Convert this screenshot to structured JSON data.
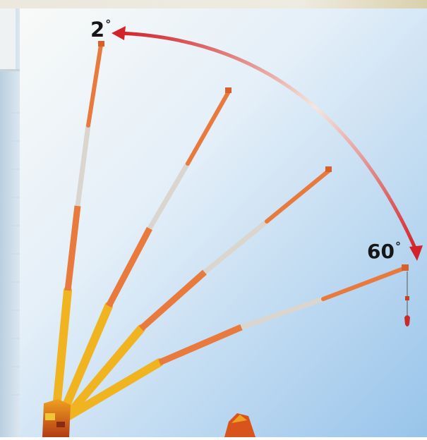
{
  "angle_labels": {
    "start": {
      "value": "2",
      "unit": "°"
    },
    "end": {
      "value": "60",
      "unit": "°"
    }
  },
  "colors": {
    "sky_top": "#f4f7f6",
    "sky_bottom": "#9cc7ea",
    "boom_orange": "#e77a3c",
    "boom_yellow": "#f1b421",
    "boom_silver": "#dad5cf",
    "arrow_red": "#d2232a",
    "left_edge_blue": "#aac5d9"
  },
  "icons": [
    "luffing-angle-arc-arrow-icon"
  ]
}
